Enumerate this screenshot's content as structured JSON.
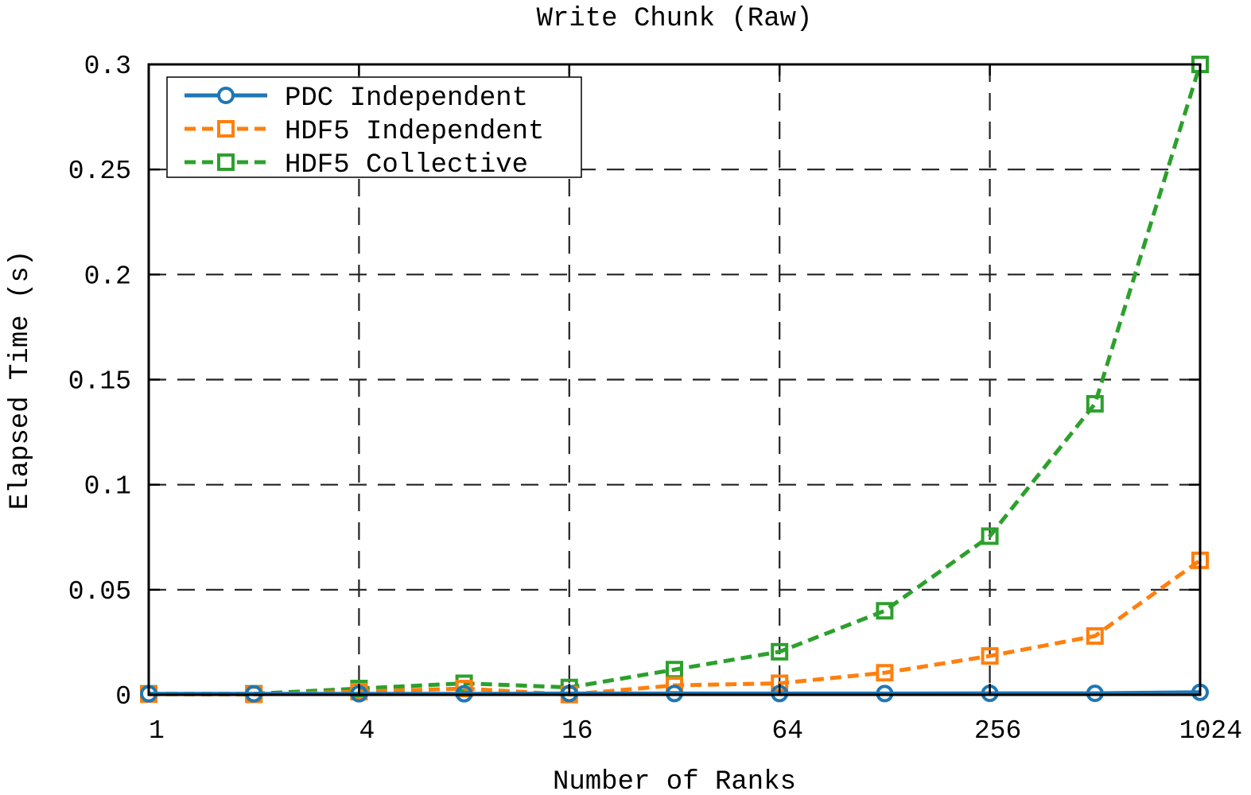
{
  "chart_data": {
    "type": "line",
    "title": "Write Chunk (Raw)",
    "xlabel": "Number of Ranks",
    "ylabel": "Elapsed Time (s)",
    "x_scale": "log2",
    "xlim": [
      1,
      1024
    ],
    "ylim": [
      0,
      0.3
    ],
    "x_ticks": [
      1,
      4,
      16,
      64,
      256,
      1024
    ],
    "x_tick_labels": [
      "1",
      "4",
      "16",
      "64",
      "256",
      "1024"
    ],
    "y_ticks": [
      0,
      0.05,
      0.1,
      0.15,
      0.2,
      0.25,
      0.3
    ],
    "y_tick_labels": [
      "0",
      "0.05",
      "0.1",
      "0.15",
      "0.2",
      "0.25",
      "0.3"
    ],
    "grid": true,
    "legend_position": "top-left",
    "x": [
      1,
      2,
      4,
      8,
      16,
      32,
      64,
      128,
      256,
      512,
      1024
    ],
    "series": [
      {
        "name": "PDC Independent",
        "color": "#1f77b4",
        "line": "solid",
        "marker": "circle",
        "values": [
          0.0005,
          0.0005,
          0.0005,
          0.0005,
          0.0006,
          0.0006,
          0.0006,
          0.0006,
          0.0007,
          0.0007,
          0.0012
        ]
      },
      {
        "name": "HDF5 Independent",
        "color": "#ff7f0e",
        "line": "dashed",
        "marker": "square",
        "values": [
          0.0003,
          0.0002,
          0.0015,
          0.003,
          0.0001,
          0.0045,
          0.0055,
          0.0105,
          0.0185,
          0.028,
          0.064
        ]
      },
      {
        "name": "HDF5 Collective",
        "color": "#2ca02c",
        "line": "dashed",
        "marker": "square",
        "values": [
          0.0005,
          0.0005,
          0.003,
          0.0055,
          0.0035,
          0.012,
          0.0205,
          0.04,
          0.0755,
          0.1385,
          0.3
        ]
      }
    ]
  }
}
